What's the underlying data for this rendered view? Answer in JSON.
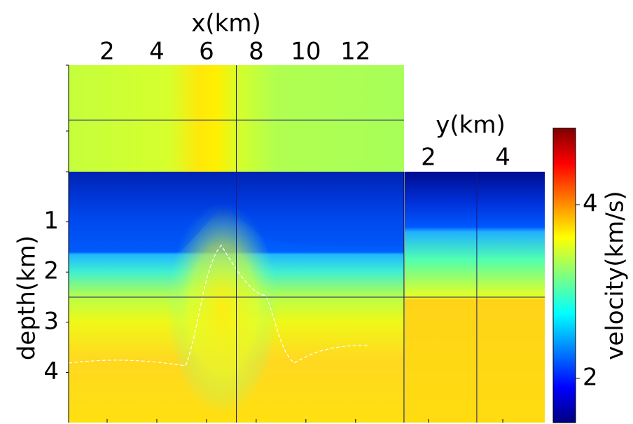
{
  "chart_data": {
    "type": "image",
    "x_label": "x(km)",
    "xlim": [
      0.45,
      13.95
    ],
    "xticks": [
      2,
      4,
      6,
      8,
      10,
      12
    ],
    "y_label": "y(km)",
    "ylim": [
      1.36,
      5.13
    ],
    "yticks": [
      2,
      4
    ],
    "depth_label": "depth(km)",
    "depth_lim": [
      0,
      5
    ],
    "depth_ticks": [
      1,
      2,
      3,
      4
    ],
    "colorbar": {
      "label": "velocity(km/s)",
      "lim": [
        1.49,
        4.88
      ],
      "ticks": [
        2,
        4
      ],
      "colormap": "jet"
    },
    "crosshair": {
      "x": 7.2,
      "y": 3.3,
      "depth": 2.5
    }
  }
}
